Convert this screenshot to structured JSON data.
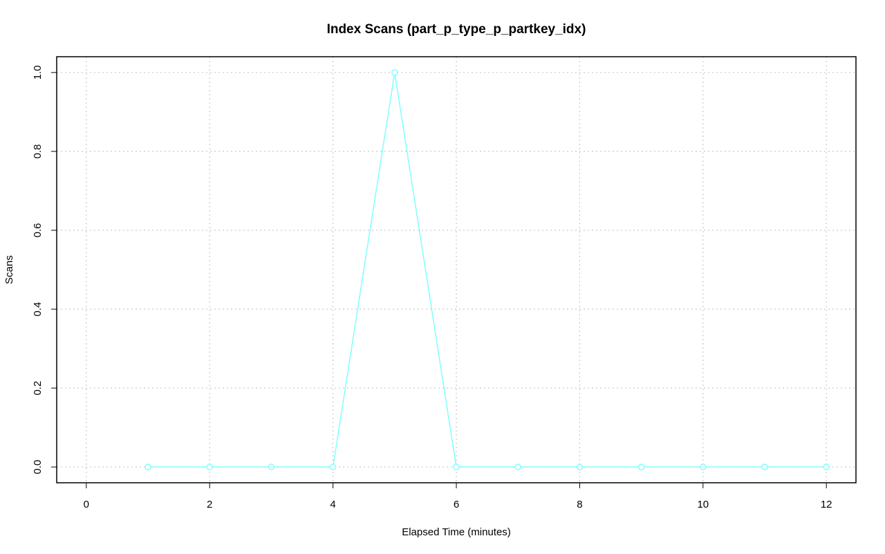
{
  "chart_data": {
    "type": "line",
    "title": "Index Scans (part_p_type_p_partkey_idx)",
    "x_label": "Elapsed Time (minutes)",
    "y_label": "Scans",
    "x": [
      1,
      2,
      3,
      4,
      5,
      6,
      7,
      8,
      9,
      10,
      11,
      12
    ],
    "values": [
      0,
      0,
      0,
      0,
      1,
      0,
      0,
      0,
      0,
      0,
      0,
      0
    ],
    "color": "#7fffff",
    "xlim": [
      -0.48,
      12.48
    ],
    "xticks": [
      0,
      2,
      4,
      6,
      8,
      10,
      12
    ],
    "ylim": [
      -0.04,
      1.04
    ],
    "yticks": [
      {
        "value": 0,
        "label": "0.0"
      },
      0.2,
      0.4,
      0.6,
      0.8,
      {
        "value": 1,
        "label": "1.0"
      }
    ],
    "grid": true
  }
}
